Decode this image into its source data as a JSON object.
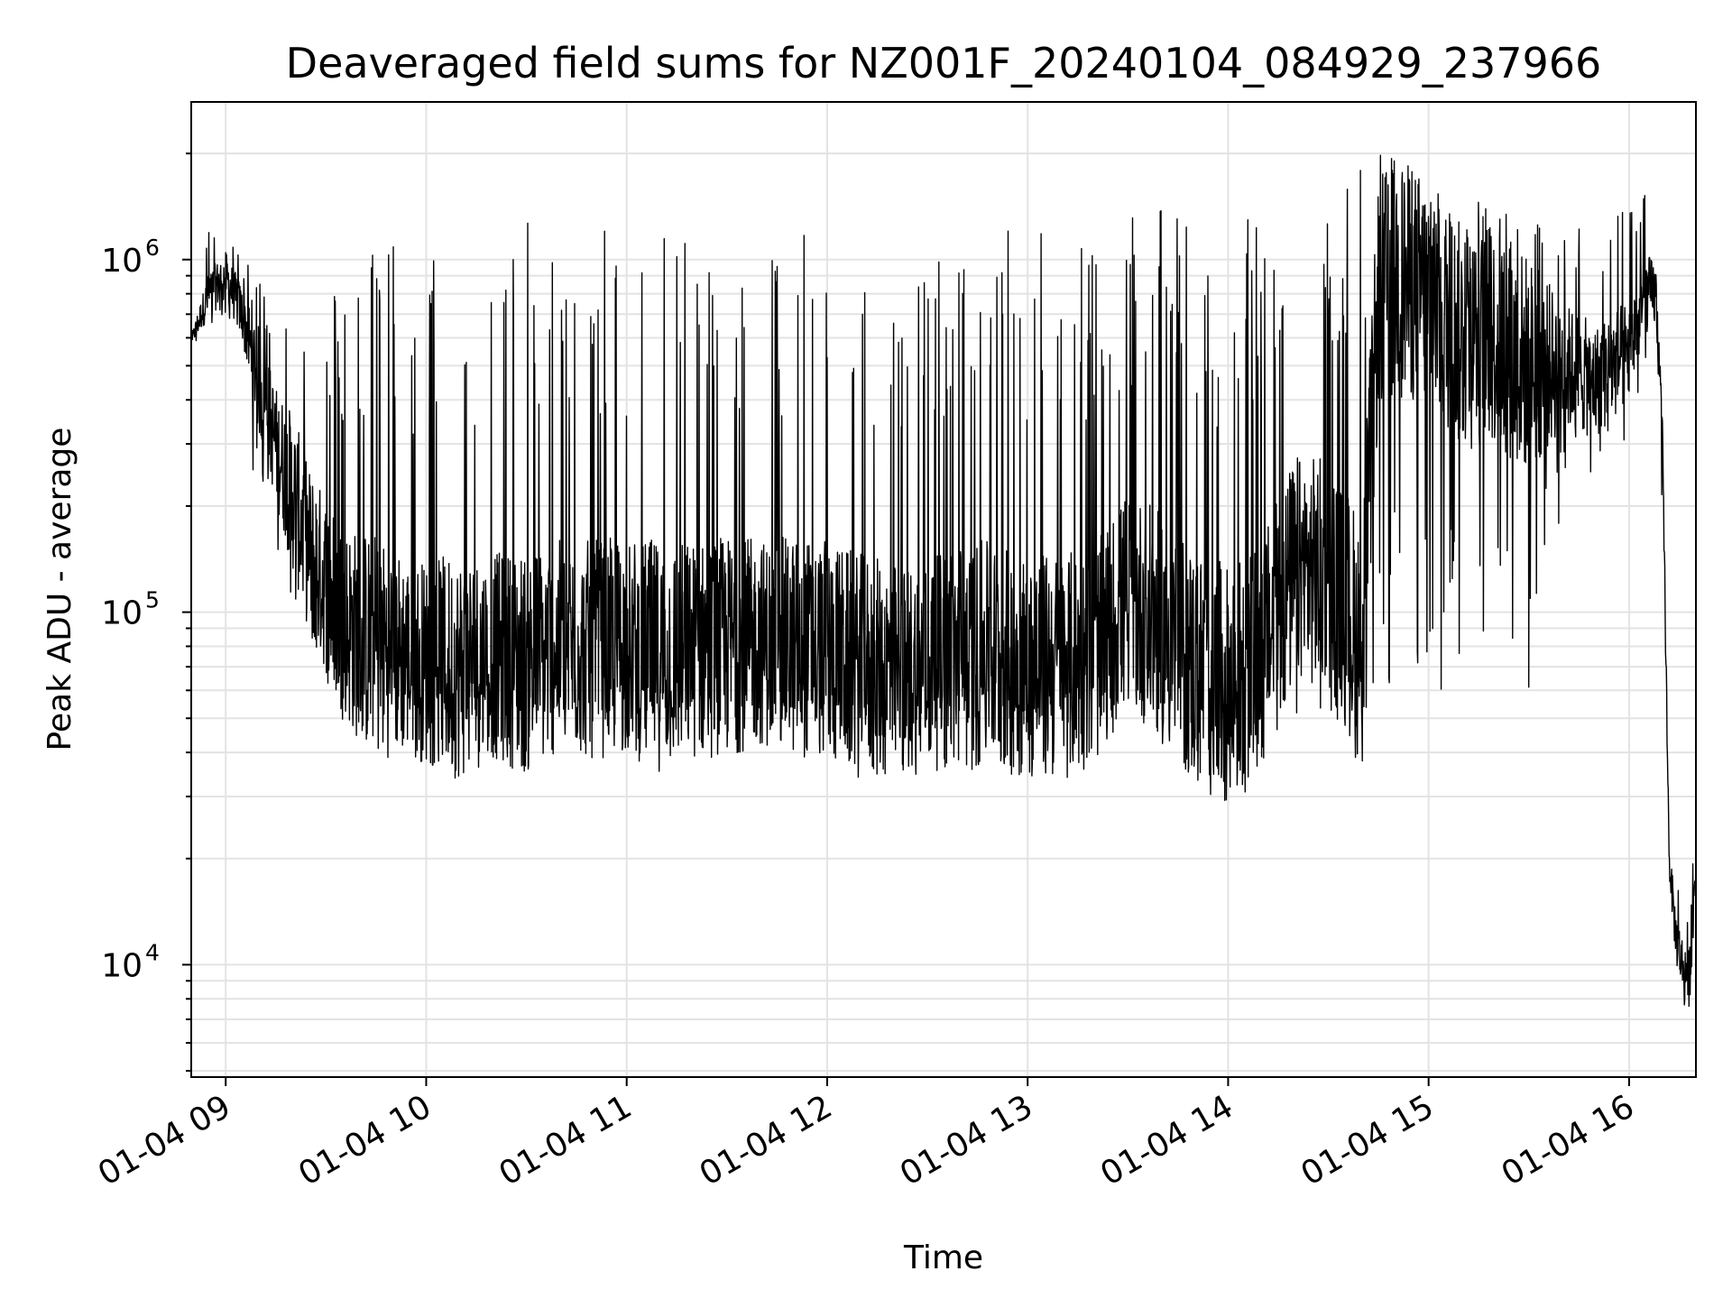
{
  "chart_data": {
    "type": "line",
    "title": "Deaveraged field sums for NZ001F_20240104_084929_237966",
    "xlabel": "Time",
    "ylabel": "Peak ADU - average",
    "x_scale": "time",
    "y_scale": "log",
    "xlim": [
      "2024-01-04 08:49:41",
      "2024-01-04 16:20:00"
    ],
    "ylim": [
      4800,
      2800000
    ],
    "grid": true,
    "grid_color": "#e3e3e3",
    "line_color": "#000000",
    "x_ticks": [
      "01-04 09",
      "01-04 10",
      "01-04 11",
      "01-04 12",
      "01-04 13",
      "01-04 14",
      "01-04 15",
      "01-04 16"
    ],
    "y_ticks": [
      {
        "base": "10",
        "exp": "4",
        "value": 10000
      },
      {
        "base": "10",
        "exp": "5",
        "value": 100000
      },
      {
        "base": "10",
        "exp": "6",
        "value": 1000000
      }
    ],
    "series": [
      {
        "x": [
          "08:50",
          "08:55",
          "09:00",
          "09:05",
          "09:10",
          "09:15",
          "09:20",
          "09:25",
          "09:30",
          "09:35",
          "09:40",
          "09:45",
          "09:50",
          "09:55",
          "10:00",
          "10:10",
          "10:20",
          "10:30",
          "10:40",
          "10:50",
          "11:00",
          "11:10",
          "11:20",
          "11:30",
          "11:40",
          "11:50",
          "12:00",
          "12:10",
          "12:20",
          "12:30",
          "12:40",
          "12:50",
          "13:00",
          "13:10",
          "13:20",
          "13:30",
          "13:40",
          "13:50",
          "14:00",
          "14:10",
          "14:20",
          "14:30",
          "14:40",
          "14:45",
          "14:50",
          "15:00",
          "15:10",
          "15:20",
          "15:30",
          "15:40",
          "15:50",
          "16:00",
          "16:05",
          "16:08",
          "16:10",
          "16:12",
          "16:14",
          "16:16",
          "16:18",
          "16:20"
        ],
        "baseline": [
          600000,
          800000,
          900000,
          700000,
          450000,
          300000,
          220000,
          150000,
          120000,
          95000,
          85000,
          80000,
          78000,
          75000,
          72000,
          70000,
          75000,
          72000,
          80000,
          78000,
          80000,
          75000,
          78000,
          80000,
          82000,
          80000,
          78000,
          70000,
          68000,
          70000,
          75000,
          75000,
          70000,
          70000,
          75000,
          110000,
          90000,
          70000,
          60000,
          75000,
          130000,
          130000,
          80000,
          800000,
          900000,
          800000,
          600000,
          600000,
          500000,
          500000,
          450000,
          550000,
          800000,
          800000,
          300000,
          20000,
          12000,
          10000,
          9000,
          20000
        ],
        "peaks": [
          650000,
          1300000,
          1400000,
          1000000,
          900000,
          800000,
          1000000,
          900000,
          800000,
          900000,
          1000000,
          1400000,
          1200000,
          900000,
          1000000,
          1300000,
          1000000,
          1300000,
          1100000,
          1300000,
          1200000,
          1400000,
          1200000,
          1300000,
          1000000,
          1300000,
          1200000,
          1200000,
          1000000,
          1000000,
          1500000,
          1400000,
          1300000,
          1400000,
          1200000,
          1300000,
          1400000,
          1300000,
          1300000,
          1300000,
          1500000,
          1400000,
          2000000,
          2000000,
          2000000,
          1700000,
          1500000,
          1500000,
          1400000,
          1300000,
          1300000,
          1400000,
          1600000,
          1300000,
          300000,
          20000,
          18000,
          16000,
          14000,
          28000
        ],
        "dips": [
          550000,
          650000,
          700000,
          450000,
          180000,
          150000,
          100000,
          80000,
          60000,
          50000,
          45000,
          50000,
          55000,
          52000,
          50000,
          48000,
          50000,
          48000,
          50000,
          52000,
          50000,
          48000,
          50000,
          52000,
          50000,
          52000,
          50000,
          45000,
          42000,
          48000,
          50000,
          50000,
          48000,
          50000,
          50000,
          55000,
          50000,
          40000,
          35000,
          45000,
          50000,
          50000,
          45000,
          65000,
          60000,
          60000,
          55000,
          65000,
          55000,
          200000,
          250000,
          300000,
          500000,
          500000,
          150000,
          12000,
          8500,
          7000,
          6000,
          9000
        ]
      }
    ]
  }
}
